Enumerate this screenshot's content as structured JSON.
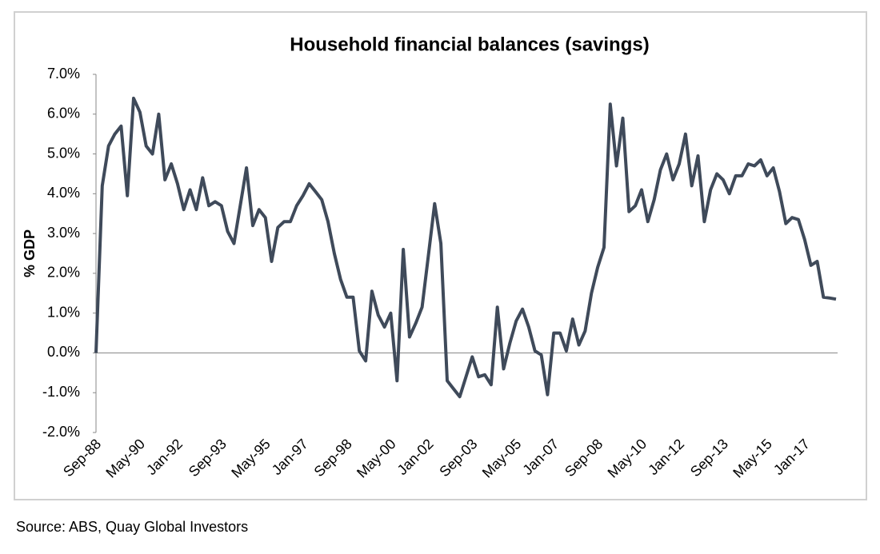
{
  "chart_data": {
    "type": "line",
    "title": "Household financial balances (savings)",
    "y_label": "% GDP",
    "source": "Source: ABS, Quay Global Investors",
    "categories": [
      "Sep-88",
      null,
      null,
      null,
      null,
      null,
      null,
      "May-90",
      null,
      null,
      null,
      null,
      null,
      "Jan-92",
      null,
      null,
      null,
      null,
      null,
      null,
      "Sep-93",
      null,
      null,
      null,
      null,
      null,
      null,
      "May-95",
      null,
      null,
      null,
      null,
      null,
      "Jan-97",
      null,
      null,
      null,
      null,
      null,
      null,
      "Sep-98",
      null,
      null,
      null,
      null,
      null,
      null,
      "May-00",
      null,
      null,
      null,
      null,
      null,
      "Jan-02",
      null,
      null,
      null,
      null,
      null,
      null,
      "Sep-03",
      null,
      null,
      null,
      null,
      null,
      null,
      "May-05",
      null,
      null,
      null,
      null,
      null,
      "Jan-07",
      null,
      null,
      null,
      null,
      null,
      null,
      "Sep-08",
      null,
      null,
      null,
      null,
      null,
      null,
      "May-10",
      null,
      null,
      null,
      null,
      null,
      "Jan-12",
      null,
      null,
      null,
      null,
      null,
      null,
      "Sep-13",
      null,
      null,
      null,
      null,
      null,
      null,
      "May-15",
      null,
      null,
      null,
      null,
      null,
      "Jan-17",
      null,
      null,
      null,
      null,
      null
    ],
    "series": [
      {
        "name": "Household financial balances",
        "color": "#3f4a5a",
        "values": [
          0,
          4.2,
          5.2,
          5.5,
          5.7,
          3.95,
          6.4,
          6.05,
          5.2,
          5.0,
          6.0,
          4.35,
          4.75,
          4.25,
          3.6,
          4.1,
          3.6,
          4.4,
          3.7,
          3.8,
          3.7,
          3.05,
          2.75,
          3.7,
          4.65,
          3.2,
          3.6,
          3.4,
          2.3,
          3.15,
          3.3,
          3.3,
          3.7,
          3.95,
          4.25,
          4.05,
          3.85,
          3.3,
          2.5,
          1.85,
          1.4,
          1.4,
          0.05,
          -0.2,
          1.55,
          0.95,
          0.65,
          1.0,
          -0.7,
          2.6,
          0.4,
          0.75,
          1.15,
          2.45,
          3.75,
          2.75,
          -0.7,
          -0.9,
          -1.1,
          -0.6,
          -0.1,
          -0.6,
          -0.55,
          -0.8,
          1.15,
          -0.4,
          0.25,
          0.8,
          1.1,
          0.65,
          0.05,
          -0.05,
          -1.05,
          0.5,
          0.5,
          0.05,
          0.85,
          0.2,
          0.55,
          1.5,
          2.15,
          2.65,
          6.25,
          4.7,
          5.9,
          3.55,
          3.7,
          4.1,
          3.3,
          3.85,
          4.6,
          5.0,
          4.35,
          4.75,
          5.5,
          4.2,
          4.95,
          3.3,
          4.1,
          4.5,
          4.35,
          4.0,
          4.45,
          4.45,
          4.75,
          4.7,
          4.85,
          4.45,
          4.65,
          4.05,
          3.25,
          3.4,
          3.35,
          2.85,
          2.2,
          2.3,
          1.4,
          1.38,
          1.35
        ]
      }
    ],
    "ylim": [
      -2,
      7
    ],
    "yticks": [
      {
        "value": -2,
        "label": "-2.0%"
      },
      {
        "value": -1,
        "label": "-1.0%"
      },
      {
        "value": 0,
        "label": "0.0%"
      },
      {
        "value": 1,
        "label": "1.0%"
      },
      {
        "value": 2,
        "label": "2.0%"
      },
      {
        "value": 3,
        "label": "3.0%"
      },
      {
        "value": 4,
        "label": "4.0%"
      },
      {
        "value": 5,
        "label": "5.0%"
      },
      {
        "value": 6,
        "label": "6.0%"
      },
      {
        "value": 7,
        "label": "7.0%"
      }
    ],
    "grid": false
  }
}
